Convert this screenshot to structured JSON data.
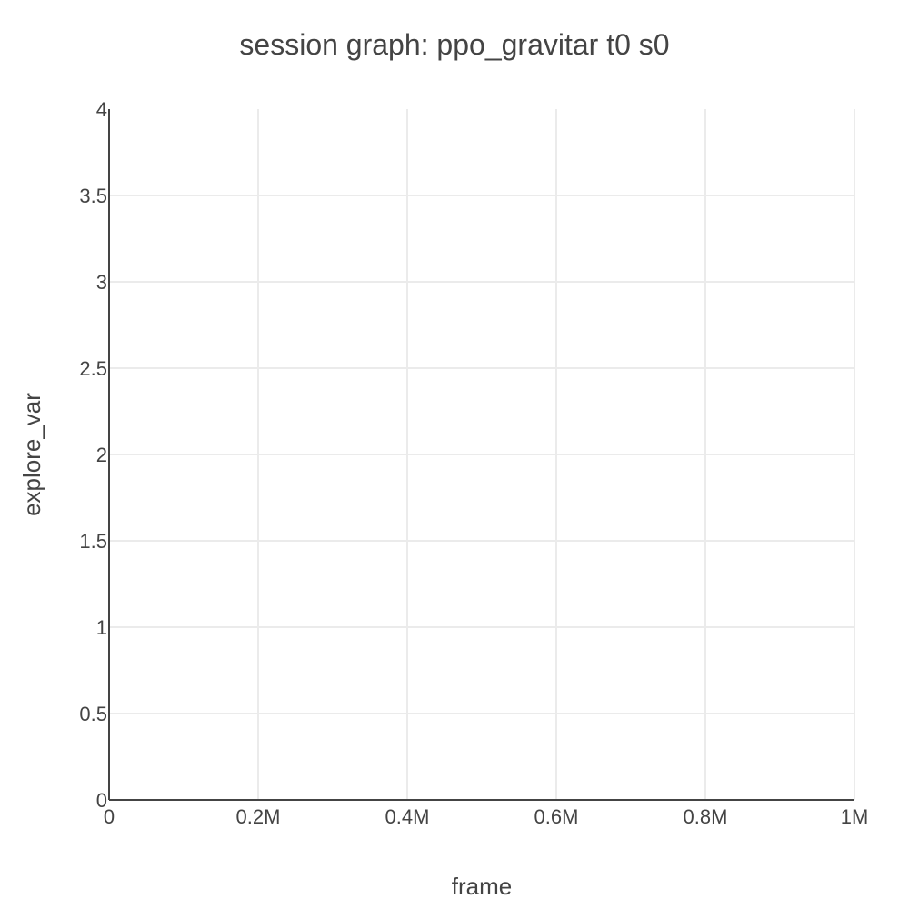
{
  "chart_data": {
    "type": "line",
    "title": "session graph: ppo_gravitar t0 s0",
    "xlabel": "frame",
    "ylabel": "explore_var",
    "xlim": [
      0,
      1000000
    ],
    "ylim": [
      0,
      4
    ],
    "x_ticks": [
      {
        "value": 0,
        "label": "0"
      },
      {
        "value": 200000,
        "label": "0.2M"
      },
      {
        "value": 400000,
        "label": "0.4M"
      },
      {
        "value": 600000,
        "label": "0.6M"
      },
      {
        "value": 800000,
        "label": "0.8M"
      },
      {
        "value": 1000000,
        "label": "1M"
      }
    ],
    "y_ticks": [
      {
        "value": 0,
        "label": "0"
      },
      {
        "value": 0.5,
        "label": "0.5"
      },
      {
        "value": 1,
        "label": "1"
      },
      {
        "value": 1.5,
        "label": "1.5"
      },
      {
        "value": 2,
        "label": "2"
      },
      {
        "value": 2.5,
        "label": "2.5"
      },
      {
        "value": 3,
        "label": "3"
      },
      {
        "value": 3.5,
        "label": "3.5"
      },
      {
        "value": 4,
        "label": "4"
      }
    ],
    "grid": true,
    "series": [],
    "colors": {
      "text": "#444444",
      "grid": "#ebebeb",
      "axis": "#444444",
      "background": "#ffffff"
    }
  }
}
